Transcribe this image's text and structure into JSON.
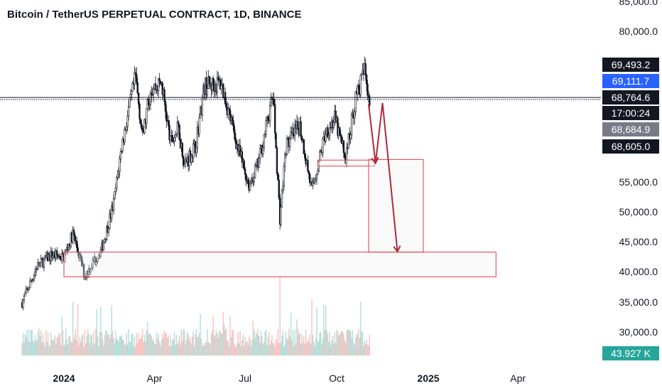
{
  "header": {
    "title": "Bitcoin / TetherUS PERPETUAL CONTRACT, 1D, BINANCE"
  },
  "colors": {
    "up": "#26a69a",
    "down": "#ef5350",
    "candle_line": "#131722",
    "annotation": "#e53945",
    "arrow": "#b0283a",
    "badge_dark": "#131722",
    "badge_blue": "#2962ff",
    "badge_gray": "#787b86",
    "badge_green": "#26a69a"
  },
  "chart_data": {
    "type": "candlestick",
    "title": "Bitcoin / TetherUS PERPETUAL CONTRACT, 1D, BINANCE",
    "y_tick_labels": [
      "85,000.0",
      "80,000.0",
      "55,000.0",
      "50,000.0",
      "45,000.0",
      "40,000.0",
      "35,000.0",
      "30,000.0"
    ],
    "x_tick_labels": [
      "2024",
      "Apr",
      "Jul",
      "Oct",
      "2025",
      "Apr"
    ],
    "ylim": [
      27000,
      85000
    ],
    "price_path": [
      [
        "2023-11-20",
        35000
      ],
      [
        "2023-12-05",
        41000
      ],
      [
        "2023-12-20",
        43000
      ],
      [
        "2024-01-01",
        42500
      ],
      [
        "2024-01-10",
        46500
      ],
      [
        "2024-01-22",
        39500
      ],
      [
        "2024-02-08",
        44000
      ],
      [
        "2024-02-20",
        51500
      ],
      [
        "2024-02-28",
        61000
      ],
      [
        "2024-03-05",
        66000
      ],
      [
        "2024-03-13",
        72500
      ],
      [
        "2024-03-20",
        62500
      ],
      [
        "2024-03-28",
        70500
      ],
      [
        "2024-04-08",
        71500
      ],
      [
        "2024-04-17",
        61500
      ],
      [
        "2024-04-25",
        64000
      ],
      [
        "2024-05-01",
        58000
      ],
      [
        "2024-05-12",
        61000
      ],
      [
        "2024-05-21",
        71000
      ],
      [
        "2024-06-07",
        71500
      ],
      [
        "2024-06-24",
        60500
      ],
      [
        "2024-07-05",
        54500
      ],
      [
        "2024-07-14",
        58000
      ],
      [
        "2024-07-29",
        69500
      ],
      [
        "2024-08-05",
        49000
      ],
      [
        "2024-08-11",
        61000
      ],
      [
        "2024-08-25",
        64500
      ],
      [
        "2024-09-06",
        53500
      ],
      [
        "2024-09-20",
        63500
      ],
      [
        "2024-09-29",
        65500
      ],
      [
        "2024-10-10",
        59000
      ],
      [
        "2024-10-20",
        69000
      ],
      [
        "2024-10-29",
        73600
      ],
      [
        "2024-11-03",
        68800
      ]
    ],
    "volume_annotations": [
      [
        "2024-08-05",
        40000
      ]
    ],
    "price_lines": [
      69111.7,
      68764.6
    ],
    "price_badges": [
      {
        "value": "69,493.2",
        "color": "dark"
      },
      {
        "value": "69,111.7",
        "color": "blue"
      },
      {
        "value": "68,764.6",
        "color": "dark"
      },
      {
        "value": "17:00:24",
        "color": "dark"
      },
      {
        "value": "68,684.9",
        "color": "gray"
      },
      {
        "value": "68,605.0",
        "color": "dark"
      }
    ],
    "volume_badge": "43.927 K",
    "zones": [
      {
        "from": "2024-01-01",
        "to": "2025-03-10",
        "low": 39300,
        "high": 43400
      },
      {
        "from": "2024-09-12",
        "to": "2024-11-08",
        "low": 57700,
        "high": 58700
      },
      {
        "from": "2024-11-02",
        "to": "2024-12-27",
        "low": 43400,
        "high": 58800
      }
    ],
    "forecast_path": [
      [
        "2024-11-02",
        68000
      ],
      [
        "2024-11-09",
        58200
      ],
      [
        "2024-11-16",
        68200
      ],
      [
        "2024-12-01",
        43500
      ]
    ]
  }
}
